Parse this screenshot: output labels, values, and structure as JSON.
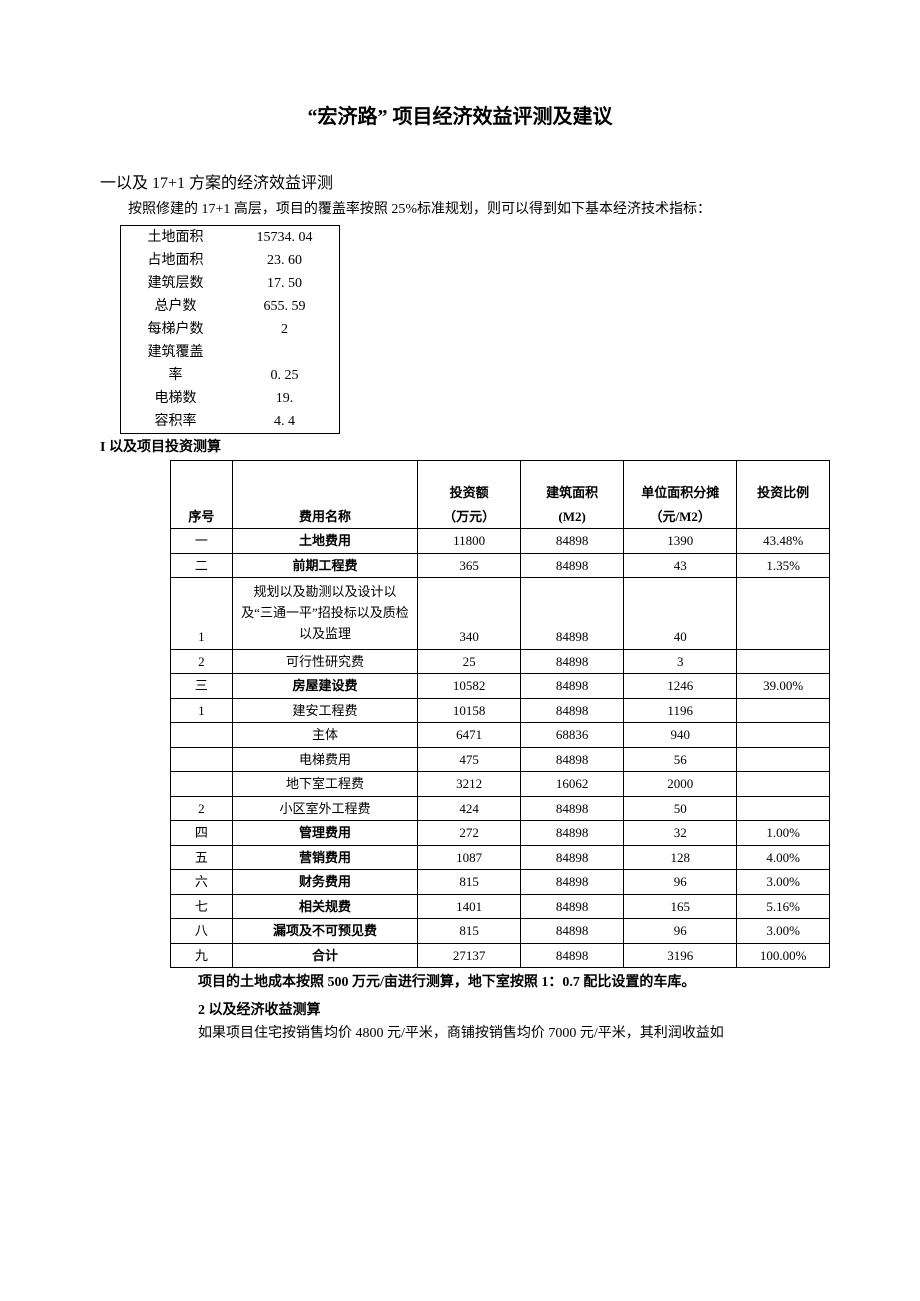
{
  "title": "“宏济路” 项目经济效益评测及建议",
  "section1": {
    "heading": "一以及 17+1 方案的经济效益评测",
    "para": "按照修建的 17+1 高层，项目的覆盖率按照 25%标准规划，则可以得到如下基本经济技术指标：",
    "small_table": [
      [
        "土地面积",
        "15734. 04"
      ],
      [
        "占地面积",
        "23. 60"
      ],
      [
        "建筑层数",
        "17. 50"
      ],
      [
        "总户数",
        "655. 59"
      ],
      [
        "每梯户数",
        "2"
      ],
      [
        "建筑覆盖率",
        "0. 25"
      ],
      [
        "电梯数",
        "19."
      ],
      [
        "容积率",
        "4. 4"
      ]
    ],
    "sub1_heading": "I 以及项目投资测算",
    "main_table": {
      "headers_top": [
        "",
        "",
        "投资额",
        "建筑面积",
        "单位面积分摊",
        "投资比例"
      ],
      "headers_bot": [
        "序号",
        "费用名称",
        "（万元）",
        "(M2)",
        "（元/M2）",
        ""
      ],
      "rows": [
        {
          "seq": "一",
          "name": "土地费用",
          "bold": true,
          "inv": "11800",
          "area": "84898",
          "unit": "1390",
          "ratio": "43.48%"
        },
        {
          "seq": "二",
          "name": "前期工程费",
          "bold": true,
          "inv": "365",
          "area": "84898",
          "unit": "43",
          "ratio": "1.35%"
        },
        {
          "seq": "1",
          "name": "规划以及勘测以及设计以及“三通一平”招投标以及质检以及监理",
          "bold": false,
          "multi": true,
          "inv": "340",
          "area": "84898",
          "unit": "40",
          "ratio": ""
        },
        {
          "seq": "2",
          "name": "可行性研究费",
          "bold": false,
          "inv": "25",
          "area": "84898",
          "unit": "3",
          "ratio": ""
        },
        {
          "seq": "三",
          "name": "房屋建设费",
          "bold": true,
          "inv": "10582",
          "area": "84898",
          "unit": "1246",
          "ratio": "39.00%"
        },
        {
          "seq": "1",
          "name": "建安工程费",
          "bold": false,
          "inv": "10158",
          "area": "84898",
          "unit": "1196",
          "ratio": ""
        },
        {
          "seq": "",
          "name": "主体",
          "bold": false,
          "inv": "6471",
          "area": "68836",
          "unit": "940",
          "ratio": ""
        },
        {
          "seq": "",
          "name": "电梯费用",
          "bold": false,
          "inv": "475",
          "area": "84898",
          "unit": "56",
          "ratio": ""
        },
        {
          "seq": "",
          "name": "地下室工程费",
          "bold": false,
          "inv": "3212",
          "area": "16062",
          "unit": "2000",
          "ratio": ""
        },
        {
          "seq": "2",
          "name": "小区室外工程费",
          "bold": false,
          "inv": "424",
          "area": "84898",
          "unit": "50",
          "ratio": ""
        },
        {
          "seq": "四",
          "name": "管理费用",
          "bold": true,
          "inv": "272",
          "area": "84898",
          "unit": "32",
          "ratio": "1.00%"
        },
        {
          "seq": "五",
          "name": "营销费用",
          "bold": true,
          "inv": "1087",
          "area": "84898",
          "unit": "128",
          "ratio": "4.00%"
        },
        {
          "seq": "六",
          "name": "财务费用",
          "bold": true,
          "inv": "815",
          "area": "84898",
          "unit": "96",
          "ratio": "3.00%"
        },
        {
          "seq": "七",
          "name": "相关规费",
          "bold": true,
          "inv": "1401",
          "area": "84898",
          "unit": "165",
          "ratio": "5.16%"
        },
        {
          "seq": "八",
          "name": "漏项及不可预见费",
          "bold": true,
          "inv": "815",
          "area": "84898",
          "unit": "96",
          "ratio": "3.00%"
        },
        {
          "seq": "九",
          "name": "合计",
          "bold": true,
          "inv": "27137",
          "area": "84898",
          "unit": "3196",
          "ratio": "100.00%"
        }
      ]
    },
    "note1": "项目的土地成本按照 500 万元/亩进行测算，地下室按照 1：0.7 配比设置的车库。",
    "sub2_heading": "2 以及经济收益测算",
    "note2": "如果项目住宅按销售均价 4800 元/平米，商铺按销售均价 7000 元/平米，其利润收益如"
  }
}
